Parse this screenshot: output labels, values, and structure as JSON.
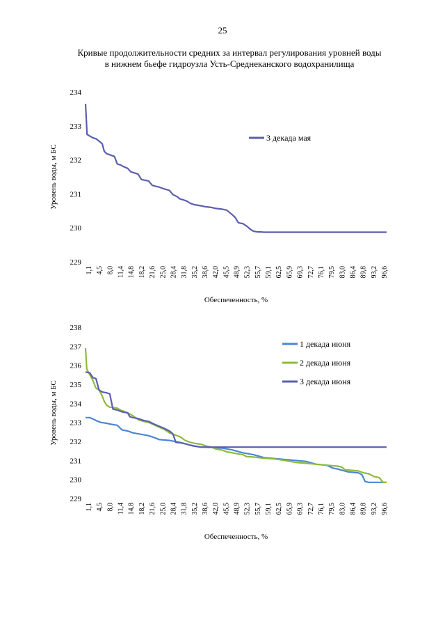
{
  "page": {
    "number": "25",
    "title_line1": "Кривые продолжительности средних за интервал регулирования уровней воды",
    "title_line2": "в нижнем бьефе гидроузла Усть-Среднеканского водохранилища"
  },
  "colors": {
    "may3": "#5b5eae",
    "jun1": "#4a86d6",
    "jun2": "#8dba3a",
    "jun3": "#5b5eae"
  },
  "chart_data": [
    {
      "type": "line",
      "xlabel": "Обеспеченность, %",
      "ylabel": "Уровень воды, м БС",
      "ylim": [
        229,
        234
      ],
      "yticks": [
        "229",
        "230",
        "231",
        "232",
        "233",
        "234"
      ],
      "xticks": [
        "1,1",
        "4,5",
        "8,0",
        "11,4",
        "14,8",
        "18,2",
        "21,6",
        "25,0",
        "28,4",
        "31,8",
        "35,2",
        "38,6",
        "42,0",
        "45,5",
        "48,9",
        "52,3",
        "55,7",
        "59,1",
        "62,5",
        "65,9",
        "69,3",
        "72,7",
        "76,1",
        "79,5",
        "83,0",
        "86,4",
        "89,8",
        "93,2",
        "96,6"
      ],
      "xlim": [
        1.1,
        99
      ],
      "legend_position": "right-upper",
      "grid": false,
      "series": [
        {
          "name": "3 декада мая",
          "color_key": "may3",
          "points": [
            [
              1.1,
              233.65
            ],
            [
              1.6,
              232.75
            ],
            [
              2.5,
              232.7
            ],
            [
              3.5,
              232.65
            ],
            [
              4.5,
              232.62
            ],
            [
              5.5,
              232.55
            ],
            [
              6.5,
              232.48
            ],
            [
              7.2,
              232.25
            ],
            [
              8.0,
              232.18
            ],
            [
              9.0,
              232.15
            ],
            [
              10.5,
              232.1
            ],
            [
              11.4,
              231.88
            ],
            [
              12.5,
              231.85
            ],
            [
              13.5,
              231.8
            ],
            [
              14.8,
              231.75
            ],
            [
              15.8,
              231.65
            ],
            [
              16.8,
              231.62
            ],
            [
              18.2,
              231.58
            ],
            [
              19.3,
              231.42
            ],
            [
              20.5,
              231.4
            ],
            [
              21.6,
              231.38
            ],
            [
              22.8,
              231.25
            ],
            [
              24.0,
              231.22
            ],
            [
              25.0,
              231.2
            ],
            [
              26.5,
              231.15
            ],
            [
              28.4,
              231.1
            ],
            [
              29.5,
              230.98
            ],
            [
              30.8,
              230.92
            ],
            [
              31.8,
              230.85
            ],
            [
              33.0,
              230.82
            ],
            [
              34.2,
              230.78
            ],
            [
              35.2,
              230.72
            ],
            [
              36.5,
              230.68
            ],
            [
              38.6,
              230.65
            ],
            [
              40.0,
              230.62
            ],
            [
              42.0,
              230.6
            ],
            [
              43.5,
              230.57
            ],
            [
              45.5,
              230.55
            ],
            [
              47.0,
              230.52
            ],
            [
              48.9,
              230.38
            ],
            [
              49.8,
              230.3
            ],
            [
              50.8,
              230.15
            ],
            [
              52.3,
              230.12
            ],
            [
              53.5,
              230.05
            ],
            [
              54.8,
              229.95
            ],
            [
              55.7,
              229.9
            ],
            [
              57.0,
              229.88
            ],
            [
              58.0,
              229.88
            ],
            [
              59.1,
              229.87
            ],
            [
              62.5,
              229.87
            ],
            [
              99,
              229.87
            ]
          ]
        }
      ]
    },
    {
      "type": "line",
      "xlabel": "Обеспеченность, %",
      "ylabel": "Уровень воды, м БС",
      "ylim": [
        229,
        238
      ],
      "yticks": [
        "229",
        "230",
        "231",
        "232",
        "233",
        "234",
        "235",
        "236",
        "237",
        "238"
      ],
      "xticks": [
        "1,1",
        "4,5",
        "8,0",
        "11,4",
        "14,8",
        "18,2",
        "21,6",
        "25,0",
        "28,4",
        "31,8",
        "35,2",
        "38,6",
        "42,0",
        "45,5",
        "48,9",
        "52,3",
        "55,7",
        "59,1",
        "62,5",
        "65,9",
        "69,3",
        "72,7",
        "76,1",
        "79,5",
        "83,0",
        "86,4",
        "89,8",
        "93,2",
        "96,6"
      ],
      "xlim": [
        1.1,
        99
      ],
      "legend_position": "right-upper",
      "grid": false,
      "series": [
        {
          "name": "1 декада июня",
          "color_key": "jun1",
          "points": [
            [
              1.1,
              233.25
            ],
            [
              2.5,
              233.25
            ],
            [
              4.5,
              233.1
            ],
            [
              6.0,
              233.0
            ],
            [
              8.0,
              232.95
            ],
            [
              9.5,
              232.9
            ],
            [
              11.4,
              232.85
            ],
            [
              13.0,
              232.6
            ],
            [
              14.8,
              232.55
            ],
            [
              16.5,
              232.45
            ],
            [
              18.2,
              232.4
            ],
            [
              20.0,
              232.35
            ],
            [
              21.6,
              232.3
            ],
            [
              23.5,
              232.2
            ],
            [
              25.0,
              232.1
            ],
            [
              28.4,
              232.05
            ],
            [
              31.8,
              231.95
            ],
            [
              35.2,
              231.8
            ],
            [
              38.6,
              231.7
            ],
            [
              42.0,
              231.68
            ],
            [
              45.5,
              231.65
            ],
            [
              48.9,
              231.55
            ],
            [
              52.3,
              231.4
            ],
            [
              55.7,
              231.3
            ],
            [
              59.1,
              231.15
            ],
            [
              62.5,
              231.1
            ],
            [
              65.9,
              231.05
            ],
            [
              69.3,
              231.0
            ],
            [
              72.7,
              230.95
            ],
            [
              76.1,
              230.8
            ],
            [
              79.5,
              230.75
            ],
            [
              81.5,
              230.6
            ],
            [
              83.0,
              230.55
            ],
            [
              86.4,
              230.4
            ],
            [
              89.8,
              230.35
            ],
            [
              91.0,
              230.25
            ],
            [
              92.0,
              229.9
            ],
            [
              93.2,
              229.85
            ],
            [
              96.6,
              229.85
            ],
            [
              99,
              229.85
            ]
          ]
        },
        {
          "name": "2 декада июня",
          "color_key": "jun2",
          "points": [
            [
              1.1,
              236.9
            ],
            [
              1.5,
              235.8
            ],
            [
              2.5,
              235.5
            ],
            [
              3.5,
              235.2
            ],
            [
              4.5,
              234.8
            ],
            [
              5.5,
              234.7
            ],
            [
              6.5,
              234.4
            ],
            [
              7.2,
              234.1
            ],
            [
              8.0,
              233.9
            ],
            [
              9.0,
              233.8
            ],
            [
              11.4,
              233.75
            ],
            [
              12.5,
              233.65
            ],
            [
              14.8,
              233.5
            ],
            [
              16.5,
              233.35
            ],
            [
              18.2,
              233.15
            ],
            [
              20.0,
              233.05
            ],
            [
              21.6,
              233.0
            ],
            [
              23.0,
              232.9
            ],
            [
              25.0,
              232.75
            ],
            [
              26.5,
              232.65
            ],
            [
              28.4,
              232.45
            ],
            [
              30.0,
              232.35
            ],
            [
              31.8,
              232.25
            ],
            [
              33.5,
              232.05
            ],
            [
              35.2,
              231.95
            ],
            [
              36.5,
              231.9
            ],
            [
              38.6,
              231.85
            ],
            [
              40.5,
              231.75
            ],
            [
              42.0,
              231.7
            ],
            [
              43.5,
              231.6
            ],
            [
              45.5,
              231.55
            ],
            [
              47.0,
              231.45
            ],
            [
              48.9,
              231.4
            ],
            [
              50.5,
              231.35
            ],
            [
              52.3,
              231.3
            ],
            [
              53.5,
              231.2
            ],
            [
              55.7,
              231.18
            ],
            [
              59.1,
              231.12
            ],
            [
              62.5,
              231.08
            ],
            [
              65.9,
              231.0
            ],
            [
              69.3,
              230.9
            ],
            [
              72.7,
              230.85
            ],
            [
              76.1,
              230.8
            ],
            [
              79.5,
              230.75
            ],
            [
              83.0,
              230.7
            ],
            [
              84.5,
              230.65
            ],
            [
              85.5,
              230.5
            ],
            [
              86.4,
              230.5
            ],
            [
              89.8,
              230.45
            ],
            [
              91.5,
              230.35
            ],
            [
              93.2,
              230.3
            ],
            [
              95.0,
              230.15
            ],
            [
              96.6,
              230.1
            ],
            [
              97.8,
              229.85
            ],
            [
              99,
              229.85
            ]
          ]
        },
        {
          "name": "3 декада июня",
          "color_key": "jun3",
          "points": [
            [
              1.1,
              235.65
            ],
            [
              2.5,
              235.6
            ],
            [
              3.5,
              235.35
            ],
            [
              4.5,
              235.3
            ],
            [
              5.5,
              234.7
            ],
            [
              6.5,
              234.6
            ],
            [
              8.0,
              234.55
            ],
            [
              9.0,
              234.5
            ],
            [
              10.0,
              233.7
            ],
            [
              11.4,
              233.65
            ],
            [
              13.0,
              233.55
            ],
            [
              14.8,
              233.5
            ],
            [
              15.5,
              233.3
            ],
            [
              16.5,
              233.25
            ],
            [
              18.2,
              233.2
            ],
            [
              20.0,
              233.1
            ],
            [
              21.6,
              233.05
            ],
            [
              23.5,
              232.9
            ],
            [
              25.0,
              232.8
            ],
            [
              26.5,
              232.7
            ],
            [
              28.4,
              232.55
            ],
            [
              29.5,
              232.4
            ],
            [
              30.5,
              231.95
            ],
            [
              31.8,
              231.93
            ],
            [
              33.5,
              231.88
            ],
            [
              35.2,
              231.8
            ],
            [
              36.5,
              231.75
            ],
            [
              38.6,
              231.7
            ],
            [
              40.5,
              231.7
            ],
            [
              42.0,
              231.7
            ],
            [
              99,
              231.7
            ]
          ]
        }
      ]
    }
  ]
}
